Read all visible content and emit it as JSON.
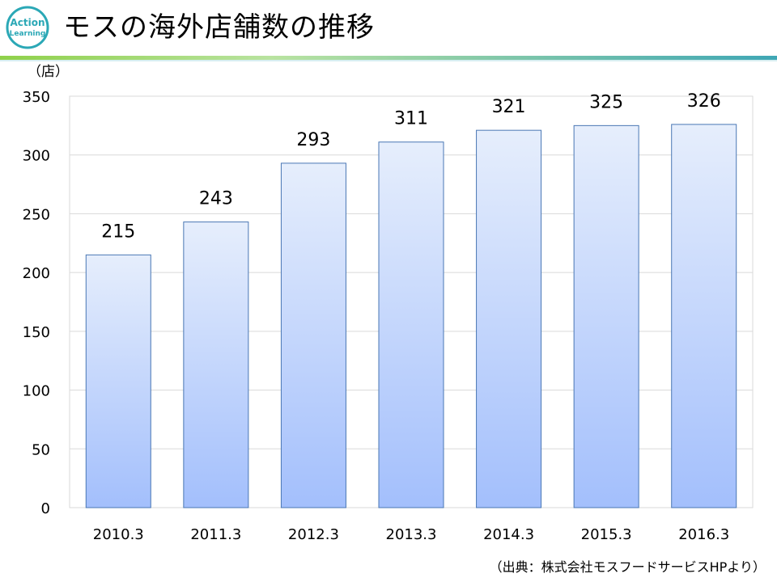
{
  "header": {
    "title": "モスの海外店舗数の推移",
    "logo_text_top": "Action",
    "logo_text_bottom": "Learning"
  },
  "chart_data": {
    "type": "bar",
    "categories": [
      "2010.3",
      "2011.3",
      "2012.3",
      "2013.3",
      "2014.3",
      "2015.3",
      "2016.3"
    ],
    "values": [
      215,
      243,
      293,
      311,
      321,
      325,
      326
    ],
    "data_labels": [
      "215",
      "243",
      "293",
      "311",
      "321",
      "325",
      "326"
    ],
    "title": "",
    "xlabel": "",
    "ylabel": "",
    "unit_label": "（店）",
    "ylim": [
      0,
      350
    ],
    "yticks": [
      0,
      50,
      100,
      150,
      200,
      250,
      300,
      350
    ],
    "grid": true,
    "legend": "none",
    "colors": {
      "bar_top": "#e6eefc",
      "bar_bottom": "#a3bffc",
      "bar_stroke": "#4a77b4",
      "grid": "#d9d9d9"
    }
  },
  "footer": {
    "source": "（出典：株式会社モスフードサービスHPより）"
  },
  "colors": {
    "header_green": "#8fd14a",
    "header_teal": "#3fa7b5",
    "logo_teal": "#2ba8b6"
  }
}
